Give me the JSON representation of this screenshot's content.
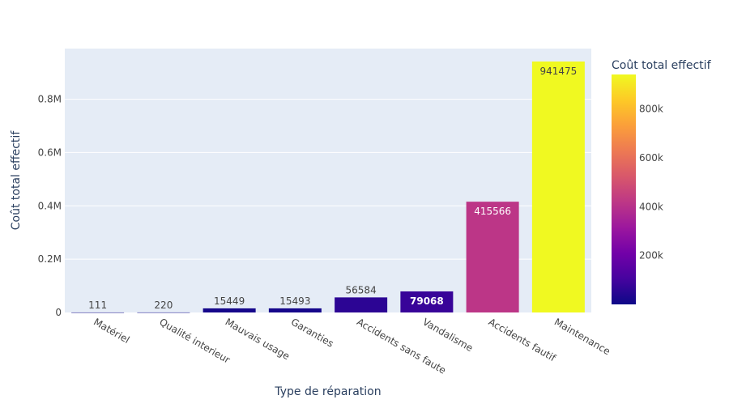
{
  "chart_data": {
    "type": "bar",
    "categories": [
      "Matériel",
      "Qualité interieur",
      "Mauvais usage",
      "Garanties",
      "Accidents sans faute",
      "Vandalisme",
      "Accidents fautif",
      "Maintenance"
    ],
    "values": [
      111,
      220,
      15449,
      15493,
      56584,
      79068,
      415566,
      941475
    ],
    "data_labels": [
      "111",
      "220",
      "15449",
      "15493",
      "56584",
      "79068",
      "415566",
      "941475"
    ],
    "xlabel": "Type de réparation",
    "ylabel": "Coût total effectif",
    "ylim": [
      0,
      990000
    ],
    "yticks": [
      0,
      200000,
      400000,
      600000,
      800000
    ],
    "ytick_labels": [
      "0",
      "0.2M",
      "0.4M",
      "0.6M",
      "0.8M"
    ],
    "grid": true,
    "colorbar": {
      "title": "Coût total effectif",
      "min": 111,
      "max": 941475,
      "ticks": [
        200000,
        400000,
        600000,
        800000
      ],
      "tick_labels": [
        "200k",
        "400k",
        "600k",
        "800k"
      ],
      "colorscale": [
        "#0d0887",
        "#46039f",
        "#7201a8",
        "#9c179e",
        "#bd3786",
        "#d8576b",
        "#ed7953",
        "#fb9f3a",
        "#fdca26",
        "#f0f921"
      ]
    },
    "colors": {
      "plot_bg": "#e5ecf6",
      "grid": "#ffffff",
      "text": "#444444",
      "axis_title": "#2a3f5f"
    }
  }
}
